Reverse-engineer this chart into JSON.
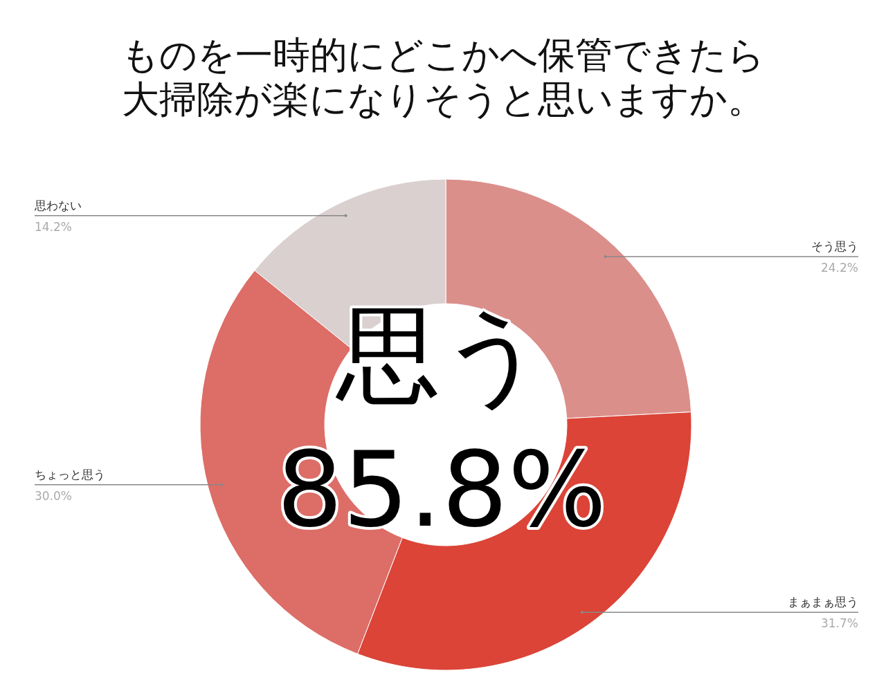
{
  "chart_data": {
    "type": "donut",
    "title": "ものを一時的にどこかへ保管できたら大掃除が楽になりそうと思いますか。",
    "categories": [
      "そう思う",
      "まぁまぁ思う",
      "ちょっと思う",
      "思わない"
    ],
    "values": [
      24.2,
      31.7,
      30.0,
      14.2
    ],
    "value_labels": [
      "24.2%",
      "31.7%",
      "30.0%",
      "14.2%"
    ],
    "colors": [
      "#db8f8b",
      "#db4437",
      "#dd6d67",
      "#d9d0cf"
    ],
    "annotations": [
      "思う\n85.8%"
    ]
  }
}
